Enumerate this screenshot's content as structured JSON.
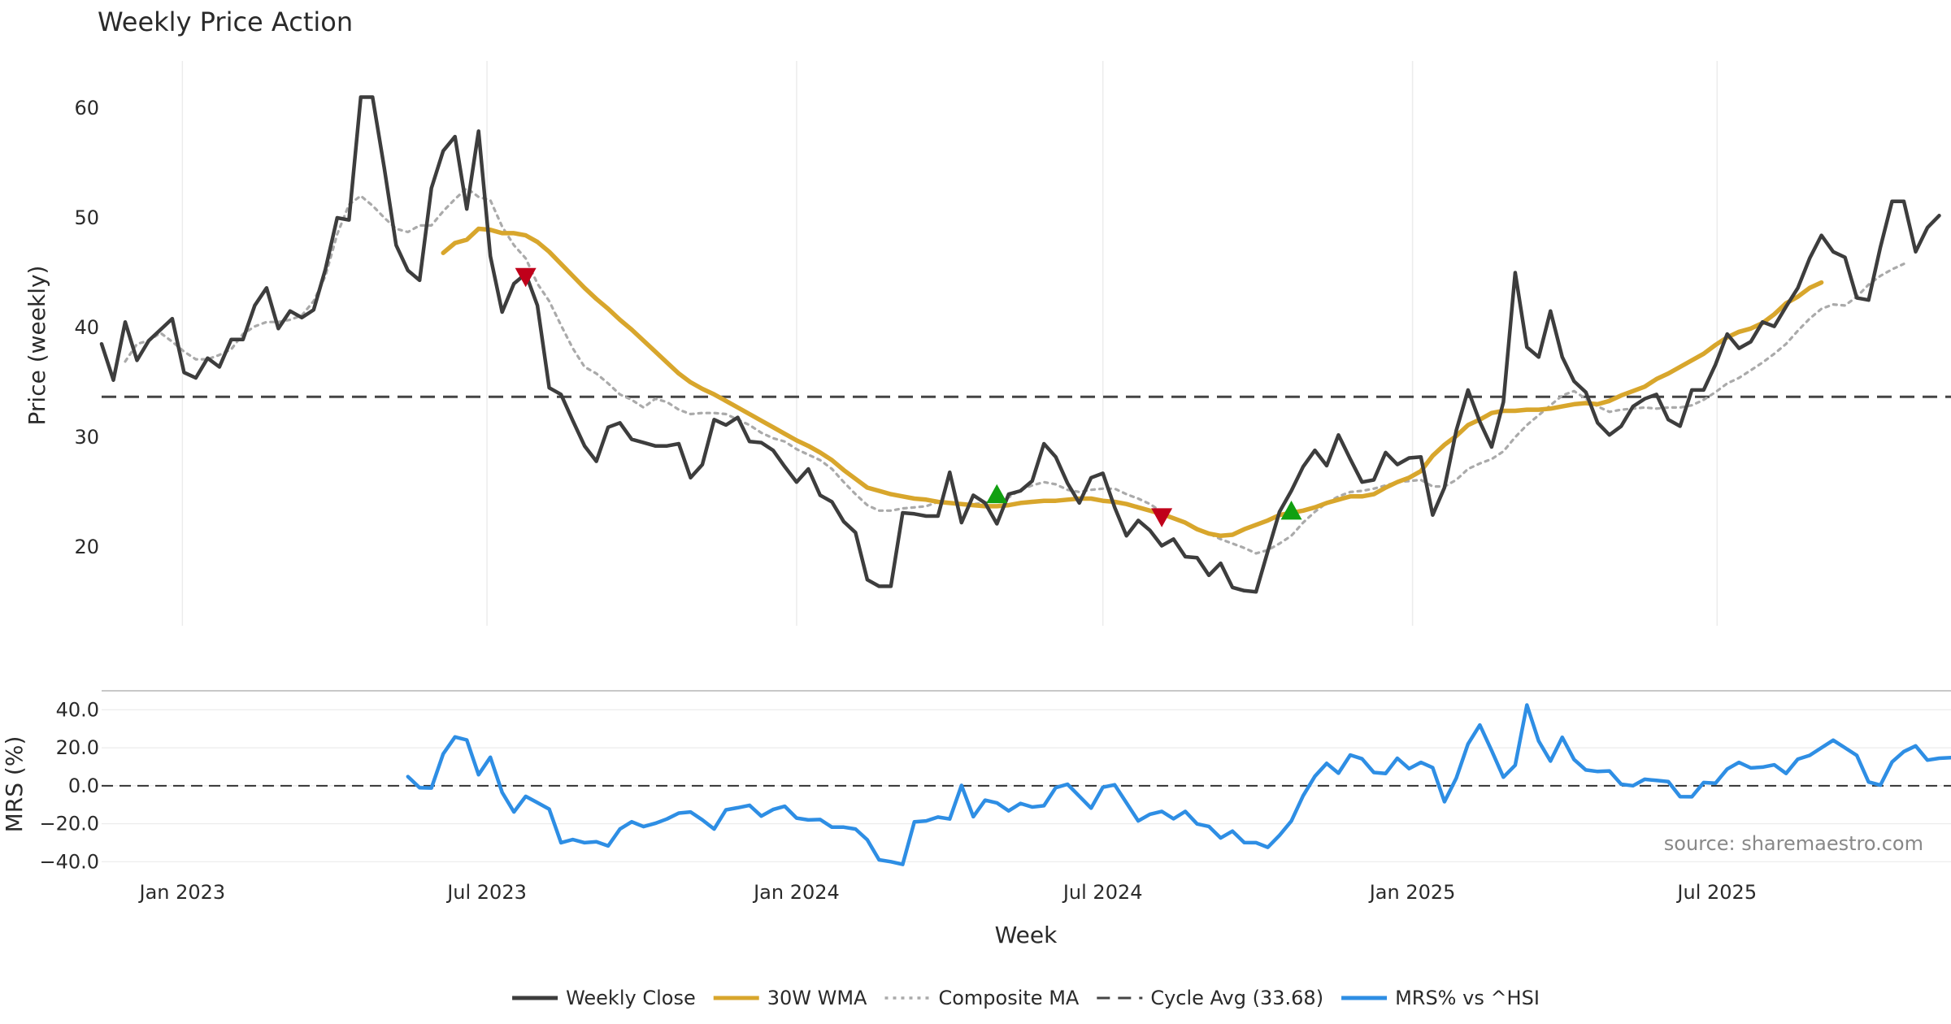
{
  "chart_data": [
    {
      "type": "line",
      "title": "Weekly Price Action",
      "ylabel": "Price (weekly)",
      "ylim": [
        12.8,
        64.3
      ],
      "yticks": [
        20,
        30,
        40,
        50,
        60
      ],
      "xlim": [
        "2022-11-14",
        "2025-11-17"
      ],
      "x_gridlines": [
        "2023-01-01",
        "2023-07-01",
        "2024-01-01",
        "2024-07-01",
        "2025-01-01",
        "2025-07-01"
      ],
      "grid": "vertical only",
      "reference_line": {
        "name": "Cycle Avg (33.68)",
        "y": 33.68,
        "style": "dashed",
        "color": "#444444"
      },
      "series": [
        {
          "name": "Weekly Close",
          "color": "#3d3d3d",
          "style": "solid",
          "start": "2022-11-14",
          "interval_days": 7,
          "values": [
            38.5,
            35.2,
            40.5,
            37.0,
            38.8,
            39.8,
            40.8,
            35.9,
            35.4,
            37.2,
            36.4,
            38.9,
            38.9,
            42.0,
            43.6,
            39.9,
            41.5,
            40.9,
            41.6,
            45.3,
            50.0,
            49.8,
            61.0,
            61.0,
            54.5,
            47.5,
            45.2,
            44.3,
            52.7,
            56.1,
            57.4,
            50.8,
            57.9,
            46.5,
            41.4,
            44.0,
            44.9,
            42.0,
            34.5,
            33.9,
            31.5,
            29.2,
            27.8,
            30.9,
            31.3,
            29.8,
            29.5,
            29.2,
            29.2,
            29.4,
            26.3,
            27.5,
            31.6,
            31.1,
            31.8,
            29.6,
            29.5,
            28.8,
            27.3,
            25.9,
            27.1,
            24.7,
            24.1,
            22.3,
            21.3,
            17.0,
            16.4,
            16.4,
            23.1,
            23.0,
            22.8,
            22.8,
            26.8,
            22.2,
            24.7,
            24.0,
            22.1,
            24.8,
            25.1,
            26.0,
            29.4,
            28.2,
            25.8,
            24.0,
            26.3,
            26.7,
            23.6,
            21.0,
            22.4,
            21.5,
            20.1,
            20.7,
            19.1,
            19.0,
            17.4,
            18.5,
            16.3,
            16.0,
            15.9,
            19.6,
            23.2,
            25.1,
            27.3,
            28.8,
            27.4,
            30.2,
            28.0,
            25.9,
            26.1,
            28.6,
            27.5,
            28.1,
            28.2,
            22.9,
            25.4,
            30.6,
            34.3,
            31.4,
            29.1,
            33.2,
            45.0,
            38.2,
            37.3,
            41.5,
            37.3,
            35.1,
            34.1,
            31.3,
            30.2,
            31.0,
            32.8,
            33.5,
            33.9,
            31.6,
            31.0,
            34.3,
            34.3,
            36.6,
            39.4,
            38.1,
            38.7,
            40.5,
            40.1,
            41.9,
            43.6,
            46.3,
            48.4,
            46.9,
            46.4,
            42.7,
            42.5,
            47.3,
            51.5,
            51.5,
            46.9,
            49.1,
            50.2
          ]
        },
        {
          "name": "30W WMA",
          "color": "#d8a62c",
          "style": "solid",
          "start": "2023-06-05",
          "interval_days": 7,
          "values": [
            46.8,
            47.7,
            48.0,
            49.0,
            48.9,
            48.6,
            48.6,
            48.4,
            47.8,
            46.9,
            45.8,
            44.7,
            43.6,
            42.6,
            41.7,
            40.7,
            39.8,
            38.8,
            37.8,
            36.8,
            35.8,
            35.0,
            34.4,
            33.9,
            33.3,
            32.7,
            32.1,
            31.5,
            30.9,
            30.3,
            29.7,
            29.2,
            28.6,
            27.9,
            27.0,
            26.2,
            25.4,
            25.1,
            24.8,
            24.6,
            24.4,
            24.3,
            24.1,
            24.0,
            23.9,
            23.8,
            23.7,
            23.7,
            23.8,
            24.0,
            24.1,
            24.2,
            24.2,
            24.3,
            24.4,
            24.4,
            24.2,
            24.1,
            23.9,
            23.6,
            23.3,
            23.0,
            22.6,
            22.2,
            21.6,
            21.2,
            21.0,
            21.1,
            21.6,
            22.0,
            22.4,
            22.9,
            23.1,
            23.3,
            23.6,
            24.0,
            24.3,
            24.6,
            24.6,
            24.8,
            25.4,
            25.9,
            26.3,
            26.9,
            28.3,
            29.3,
            30.1,
            31.1,
            31.6,
            32.2,
            32.4,
            32.4,
            32.5,
            32.5,
            32.6,
            32.8,
            33.0,
            33.1,
            33.0,
            33.3,
            33.8,
            34.2,
            34.6,
            35.3,
            35.8,
            36.4,
            37.0,
            37.6,
            38.4,
            39.1,
            39.6,
            39.9,
            40.4,
            41.2,
            42.2,
            42.8,
            43.6,
            44.1
          ]
        },
        {
          "name": "Composite MA",
          "color": "#aaaaaa",
          "style": "dotted",
          "start": "2022-11-28",
          "interval_days": 7,
          "values": [
            36.9,
            38.5,
            38.8,
            39.5,
            38.7,
            37.8,
            37.1,
            37.1,
            37.5,
            38.0,
            39.4,
            40.1,
            40.5,
            40.5,
            40.7,
            41.1,
            42.4,
            44.7,
            48.5,
            51.2,
            52.0,
            51.1,
            50.0,
            49.0,
            48.7,
            49.3,
            49.3,
            50.6,
            51.7,
            52.7,
            51.9,
            51.6,
            49.2,
            47.5,
            46.3,
            44.0,
            42.4,
            40.2,
            38.1,
            36.4,
            35.8,
            34.9,
            33.9,
            33.4,
            32.7,
            33.5,
            33.2,
            32.5,
            32.1,
            32.2,
            32.2,
            32.1,
            31.6,
            31.1,
            30.4,
            29.9,
            29.6,
            28.9,
            28.4,
            27.9,
            27.1,
            25.9,
            24.8,
            23.8,
            23.3,
            23.3,
            23.5,
            23.6,
            23.7,
            24.1,
            24.0,
            23.9,
            23.9,
            24.0,
            24.3,
            24.5,
            25.2,
            25.6,
            25.9,
            25.7,
            25.2,
            25.0,
            25.2,
            25.3,
            25.3,
            24.8,
            24.4,
            23.9,
            23.2,
            22.6,
            22.2,
            21.7,
            21.2,
            20.7,
            20.3,
            19.9,
            19.4,
            19.7,
            20.3,
            21.0,
            22.2,
            23.2,
            24.0,
            24.6,
            25.0,
            25.1,
            25.3,
            25.6,
            25.9,
            26.0,
            26.1,
            25.5,
            25.5,
            26.1,
            27.1,
            27.6,
            28.0,
            28.7,
            30.0,
            31.1,
            32.0,
            32.9,
            33.8,
            34.2,
            33.5,
            32.8,
            32.3,
            32.5,
            32.6,
            32.7,
            32.6,
            32.7,
            32.7,
            32.9,
            33.4,
            34.1,
            34.9,
            35.4,
            36.1,
            36.8,
            37.6,
            38.5,
            39.7,
            40.8,
            41.7,
            42.1,
            42.0,
            42.8,
            43.9,
            44.7,
            45.3,
            45.8
          ]
        }
      ],
      "signals": [
        {
          "type": "sell",
          "date": "2023-07-24",
          "y": 44.6,
          "color": "#c0001a"
        },
        {
          "type": "buy",
          "date": "2024-04-29",
          "y": 24.8,
          "color": "#11a011"
        },
        {
          "type": "sell",
          "date": "2024-08-05",
          "y": 22.7,
          "color": "#c0001a"
        },
        {
          "type": "buy",
          "date": "2024-10-21",
          "y": 23.3,
          "color": "#11a011"
        }
      ]
    },
    {
      "type": "line",
      "ylabel": "MRS (%)",
      "ylim": [
        -45,
        50
      ],
      "yticks": [
        40.0,
        20.0,
        0.0,
        -20.0,
        -40.0
      ],
      "ytick_labels": [
        "40.0",
        "20.0",
        "0.0",
        "−20.0",
        "−40.0"
      ],
      "xlabel": "Week",
      "x_tick_labels": [
        {
          "date": "2023-01-01",
          "label": "Jan 2023"
        },
        {
          "date": "2023-07-01",
          "label": "Jul 2023"
        },
        {
          "date": "2024-01-01",
          "label": "Jan 2024"
        },
        {
          "date": "2024-07-01",
          "label": "Jul 2024"
        },
        {
          "date": "2025-01-01",
          "label": "Jan 2025"
        },
        {
          "date": "2025-07-01",
          "label": "Jul 2025"
        }
      ],
      "grid": "horizontal",
      "reference_line": {
        "y": 0,
        "style": "dashed",
        "color": "#333333"
      },
      "series": [
        {
          "name": "MRS% vs ^HSI",
          "color": "#2e8ee4",
          "style": "solid",
          "start": "2023-05-15",
          "interval_days": 7,
          "values": [
            4.8,
            -1.0,
            -1.2,
            16.8,
            25.7,
            24.1,
            5.8,
            15.0,
            -3.5,
            -13.8,
            -5.6,
            -8.9,
            -12.3,
            -30.0,
            -28.3,
            -30.0,
            -29.5,
            -31.7,
            -22.8,
            -19.0,
            -21.5,
            -19.8,
            -17.5,
            -14.4,
            -13.8,
            -18.0,
            -22.8,
            -12.7,
            -11.6,
            -10.3,
            -16.0,
            -12.5,
            -10.8,
            -17.0,
            -18.0,
            -17.8,
            -21.8,
            -21.8,
            -22.8,
            -28.5,
            -39.0,
            -40.0,
            -41.4,
            -19.0,
            -18.5,
            -16.5,
            -17.5,
            0.2,
            -16.3,
            -7.6,
            -9.0,
            -13.2,
            -9.3,
            -11.2,
            -10.5,
            -1.0,
            0.8,
            -5.5,
            -11.8,
            -0.8,
            0.5,
            -9.0,
            -18.5,
            -15.0,
            -13.5,
            -17.4,
            -13.5,
            -20.1,
            -21.4,
            -27.5,
            -23.9,
            -29.9,
            -30.0,
            -32.4,
            -26.1,
            -18.6,
            -5.3,
            5.0,
            11.8,
            6.6,
            16.2,
            14.2,
            7.0,
            6.5,
            14.5,
            9.0,
            12.3,
            9.5,
            -8.4,
            4.0,
            22.0,
            32.0,
            18.5,
            4.5,
            10.8,
            42.5,
            23.5,
            13.0,
            25.5,
            13.8,
            8.3,
            7.5,
            7.8,
            0.8,
            0.0,
            3.4,
            2.8,
            2.2,
            -5.7,
            -5.8,
            1.7,
            1.3,
            8.8,
            12.3,
            9.4,
            9.8,
            11.0,
            6.5,
            14.0,
            16.0,
            20.0,
            24.0,
            20.0,
            16.0,
            2.0,
            0.3,
            12.5,
            18.0,
            21.0,
            13.5,
            14.5,
            14.8
          ]
        }
      ],
      "annotation": "source: sharemaestro.com"
    }
  ],
  "legend": {
    "placement": "bottom-center",
    "items": [
      {
        "label": "Weekly Close",
        "color": "#3d3d3d",
        "style": "solid"
      },
      {
        "label": "30W WMA",
        "color": "#d8a62c",
        "style": "solid"
      },
      {
        "label": "Composite MA",
        "color": "#aaaaaa",
        "style": "dotted"
      },
      {
        "label": "Cycle Avg (33.68)",
        "color": "#444444",
        "style": "dashed"
      },
      {
        "label": "MRS% vs ^HSI",
        "color": "#2e8ee4",
        "style": "solid"
      }
    ]
  }
}
